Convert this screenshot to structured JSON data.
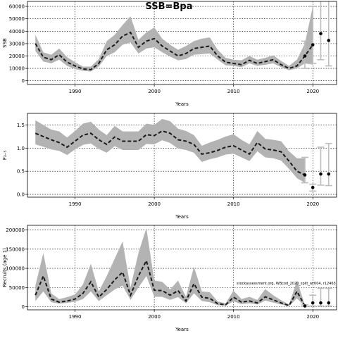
{
  "title": "SSB=Bpa",
  "note": "stockassessment.org, WBcod_2020_split_wr004, r12463",
  "chart_data": [
    {
      "type": "line",
      "ylabel": "SSB",
      "xlabel": "Years",
      "xlim": [
        1984,
        2023
      ],
      "ylim": [
        -3000,
        64000
      ],
      "xticks": [
        1990,
        2000,
        2010,
        2020
      ],
      "yticks": [
        0,
        10000,
        20000,
        30000,
        40000,
        50000,
        60000
      ],
      "ytick_labels": [
        "0",
        "10000",
        "20000",
        "30000",
        "40000",
        "50000",
        "60000"
      ],
      "x": [
        1985,
        1986,
        1987,
        1988,
        1989,
        1990,
        1991,
        1992,
        1993,
        1994,
        1995,
        1996,
        1997,
        1998,
        1999,
        2000,
        2001,
        2002,
        2003,
        2004,
        2005,
        2006,
        2007,
        2008,
        2009,
        2010,
        2011,
        2012,
        2013,
        2014,
        2015,
        2016,
        2017,
        2018,
        2019,
        2020
      ],
      "median": [
        30000,
        19000,
        17000,
        21000,
        15000,
        12000,
        9500,
        9000,
        14000,
        25000,
        29000,
        36000,
        39000,
        27000,
        32000,
        34000,
        28000,
        24000,
        20000,
        22000,
        26000,
        27000,
        28000,
        20000,
        15000,
        14000,
        13000,
        16500,
        14000,
        15500,
        17000,
        13000,
        10000,
        12000,
        20000,
        29000
      ],
      "lower": [
        24000,
        15500,
        14000,
        17000,
        12000,
        9500,
        8000,
        7500,
        11500,
        20000,
        23000,
        29000,
        31000,
        22000,
        26000,
        27000,
        23000,
        19500,
        16500,
        17500,
        21000,
        21500,
        22000,
        17000,
        12500,
        12000,
        11000,
        14000,
        12000,
        13000,
        14000,
        11000,
        8500,
        10000,
        14000,
        13000
      ],
      "upper": [
        37000,
        23000,
        21000,
        26000,
        19000,
        15000,
        11500,
        11500,
        17500,
        32000,
        37000,
        45000,
        52000,
        33000,
        39000,
        43000,
        34000,
        29000,
        25000,
        28000,
        32000,
        34000,
        35000,
        25000,
        18500,
        17000,
        16500,
        20000,
        17000,
        18500,
        20500,
        16000,
        12000,
        17000,
        30000,
        60000
      ],
      "forecast": [
        {
          "x": 2019,
          "y": 20000,
          "lo": 10000,
          "hi": 32000
        },
        {
          "x": 2020,
          "y": 29000,
          "lo": 14000,
          "hi": 60000
        },
        {
          "x": 2021,
          "y": 38000,
          "lo": 17000,
          "hi": 80000
        },
        {
          "x": 2022,
          "y": 32500,
          "lo": 12000,
          "hi": 80000
        }
      ]
    },
    {
      "type": "line",
      "ylabel": "F₃₋₅",
      "xlabel": "Years",
      "xlim": [
        1984,
        2023
      ],
      "ylim": [
        -0.06,
        1.75
      ],
      "xticks": [
        1990,
        2000,
        2010,
        2020
      ],
      "yticks": [
        0,
        0.5,
        1.0,
        1.5
      ],
      "ytick_labels": [
        "0.0",
        "0.5",
        "1.0",
        "1.5"
      ],
      "x": [
        1985,
        1986,
        1987,
        1988,
        1989,
        1990,
        1991,
        1992,
        1993,
        1994,
        1995,
        1996,
        1997,
        1998,
        1999,
        2000,
        2001,
        2002,
        2003,
        2004,
        2005,
        2006,
        2007,
        2008,
        2009,
        2010,
        2011,
        2012,
        2013,
        2014,
        2015,
        2016,
        2017,
        2018,
        2019
      ],
      "median": [
        1.32,
        1.25,
        1.18,
        1.12,
        1.02,
        1.15,
        1.28,
        1.32,
        1.18,
        1.08,
        1.24,
        1.15,
        1.15,
        1.15,
        1.29,
        1.27,
        1.37,
        1.32,
        1.18,
        1.15,
        1.08,
        0.87,
        0.9,
        0.95,
        1.02,
        1.05,
        0.96,
        0.87,
        1.12,
        0.98,
        0.96,
        0.92,
        0.72,
        0.5,
        0.42
      ],
      "lower": [
        1.08,
        1.03,
        0.97,
        0.94,
        0.85,
        0.97,
        1.07,
        1.1,
        0.98,
        0.9,
        1.04,
        0.96,
        0.96,
        0.96,
        1.09,
        1.08,
        1.17,
        1.11,
        0.99,
        0.96,
        0.9,
        0.7,
        0.76,
        0.8,
        0.86,
        0.88,
        0.8,
        0.72,
        0.93,
        0.8,
        0.78,
        0.73,
        0.55,
        0.35,
        0.25
      ],
      "upper": [
        1.6,
        1.5,
        1.4,
        1.36,
        1.23,
        1.37,
        1.53,
        1.57,
        1.4,
        1.28,
        1.48,
        1.36,
        1.36,
        1.36,
        1.53,
        1.5,
        1.63,
        1.58,
        1.42,
        1.37,
        1.28,
        1.05,
        1.12,
        1.18,
        1.25,
        1.3,
        1.18,
        1.08,
        1.37,
        1.2,
        1.18,
        1.15,
        0.93,
        0.78,
        0.78
      ],
      "forecast": [
        {
          "x": 2019,
          "y": 0.42,
          "lo": 0.25,
          "hi": 0.8
        },
        {
          "x": 2020,
          "y": 0.15,
          "lo": 0.07,
          "hi": 0.22
        },
        {
          "x": 2021,
          "y": 0.44,
          "lo": 0.2,
          "hi": 1.02
        },
        {
          "x": 2022,
          "y": 0.44,
          "lo": 0.19,
          "hi": 1.1
        }
      ]
    },
    {
      "type": "line",
      "ylabel": "Recruits (age 1)",
      "xlabel": "Years",
      "xlim": [
        1984,
        2023
      ],
      "ylim": [
        -8000,
        212000
      ],
      "xticks": [
        1990,
        2000,
        2010,
        2020
      ],
      "yticks": [
        0,
        50000,
        100000,
        150000,
        200000
      ],
      "ytick_labels": [
        "0",
        "50000",
        "100000",
        "150000",
        "200000"
      ],
      "x": [
        1985,
        1986,
        1987,
        1988,
        1989,
        1990,
        1991,
        1992,
        1993,
        1994,
        1995,
        1996,
        1997,
        1998,
        1999,
        2000,
        2001,
        2002,
        2003,
        2004,
        2005,
        2006,
        2007,
        2008,
        2009,
        2010,
        2011,
        2012,
        2013,
        2014,
        2015,
        2016,
        2017,
        2018,
        2019
      ],
      "median": [
        30000,
        80000,
        20000,
        12000,
        15000,
        20000,
        35000,
        65000,
        25000,
        45000,
        70000,
        90000,
        30000,
        80000,
        120000,
        43000,
        42000,
        30000,
        42000,
        15000,
        60000,
        25000,
        22000,
        8000,
        5000,
        25000,
        12000,
        15000,
        10000,
        26000,
        18000,
        10000,
        3000,
        40000,
        2000
      ],
      "lower": [
        15000,
        40000,
        12000,
        8000,
        10000,
        13000,
        20000,
        40000,
        15000,
        30000,
        45000,
        55000,
        18000,
        50000,
        80000,
        26000,
        26000,
        18000,
        25000,
        9000,
        35000,
        15000,
        12000,
        4000,
        3000,
        14000,
        7000,
        9000,
        6000,
        16000,
        11000,
        6000,
        1500,
        22000,
        800
      ],
      "upper": [
        55000,
        140000,
        35000,
        20000,
        25000,
        32000,
        58000,
        112000,
        40000,
        80000,
        125000,
        170000,
        50000,
        140000,
        205000,
        68000,
        65000,
        45000,
        68000,
        26000,
        104000,
        40000,
        38000,
        14000,
        9000,
        42000,
        20000,
        26000,
        18000,
        46000,
        30000,
        17000,
        6000,
        68000,
        5000
      ],
      "forecast": [
        {
          "x": 2019,
          "y": 2000,
          "lo": 800,
          "hi": 5000
        },
        {
          "x": 2020,
          "y": 10000,
          "lo": 2000,
          "hi": 30000
        },
        {
          "x": 2021,
          "y": 10000,
          "lo": 2000,
          "hi": 48000
        },
        {
          "x": 2022,
          "y": 10000,
          "lo": 2000,
          "hi": 48000
        }
      ]
    }
  ]
}
